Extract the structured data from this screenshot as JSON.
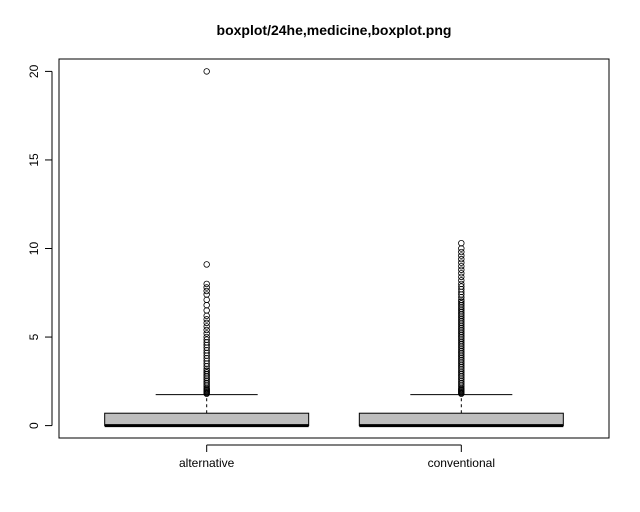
{
  "chart_data": {
    "type": "boxplot",
    "title": "boxplot/24he,medicine,boxplot.png",
    "xlabel": "",
    "ylabel": "",
    "categories": [
      "alternative",
      "conventional"
    ],
    "ylim": [
      -0.7,
      20.7
    ],
    "yticks": [
      0,
      5,
      10,
      15,
      20
    ],
    "grid": false,
    "legend": "none",
    "box_fill": "#bebebe",
    "series": [
      {
        "category": "alternative",
        "whisker_low": 0,
        "q1": 0,
        "median": 0,
        "q3": 0.7,
        "whisker_high": 1.75,
        "outliers": [
          1.8,
          1.85,
          1.9,
          1.95,
          2.0,
          2.05,
          2.1,
          2.2,
          2.3,
          2.4,
          2.5,
          2.6,
          2.7,
          2.8,
          2.9,
          3.0,
          3.1,
          3.2,
          3.35,
          3.5,
          3.65,
          3.8,
          3.95,
          4.1,
          4.25,
          4.4,
          4.55,
          4.7,
          4.85,
          5.0,
          5.2,
          5.4,
          5.6,
          5.8,
          6.0,
          6.2,
          6.5,
          6.8,
          7.1,
          7.4,
          7.6,
          7.8,
          8.0,
          9.1,
          20.0
        ]
      },
      {
        "category": "conventional",
        "whisker_low": 0,
        "q1": 0,
        "median": 0,
        "q3": 0.7,
        "whisker_high": 1.75,
        "outliers": [
          1.8,
          1.85,
          1.9,
          1.95,
          2.0,
          2.05,
          2.1,
          2.2,
          2.3,
          2.4,
          2.5,
          2.6,
          2.7,
          2.8,
          2.9,
          3.0,
          3.1,
          3.2,
          3.3,
          3.4,
          3.5,
          3.6,
          3.7,
          3.8,
          3.9,
          4.0,
          4.1,
          4.2,
          4.3,
          4.4,
          4.5,
          4.6,
          4.7,
          4.8,
          4.9,
          5.0,
          5.1,
          5.2,
          5.3,
          5.4,
          5.5,
          5.6,
          5.7,
          5.8,
          5.9,
          6.0,
          6.1,
          6.2,
          6.3,
          6.4,
          6.5,
          6.6,
          6.7,
          6.8,
          6.9,
          7.0,
          7.1,
          7.25,
          7.4,
          7.55,
          7.7,
          7.85,
          8.0,
          8.2,
          8.4,
          8.6,
          8.8,
          9.0,
          9.2,
          9.4,
          9.6,
          9.8,
          10.0,
          10.3
        ]
      }
    ]
  }
}
